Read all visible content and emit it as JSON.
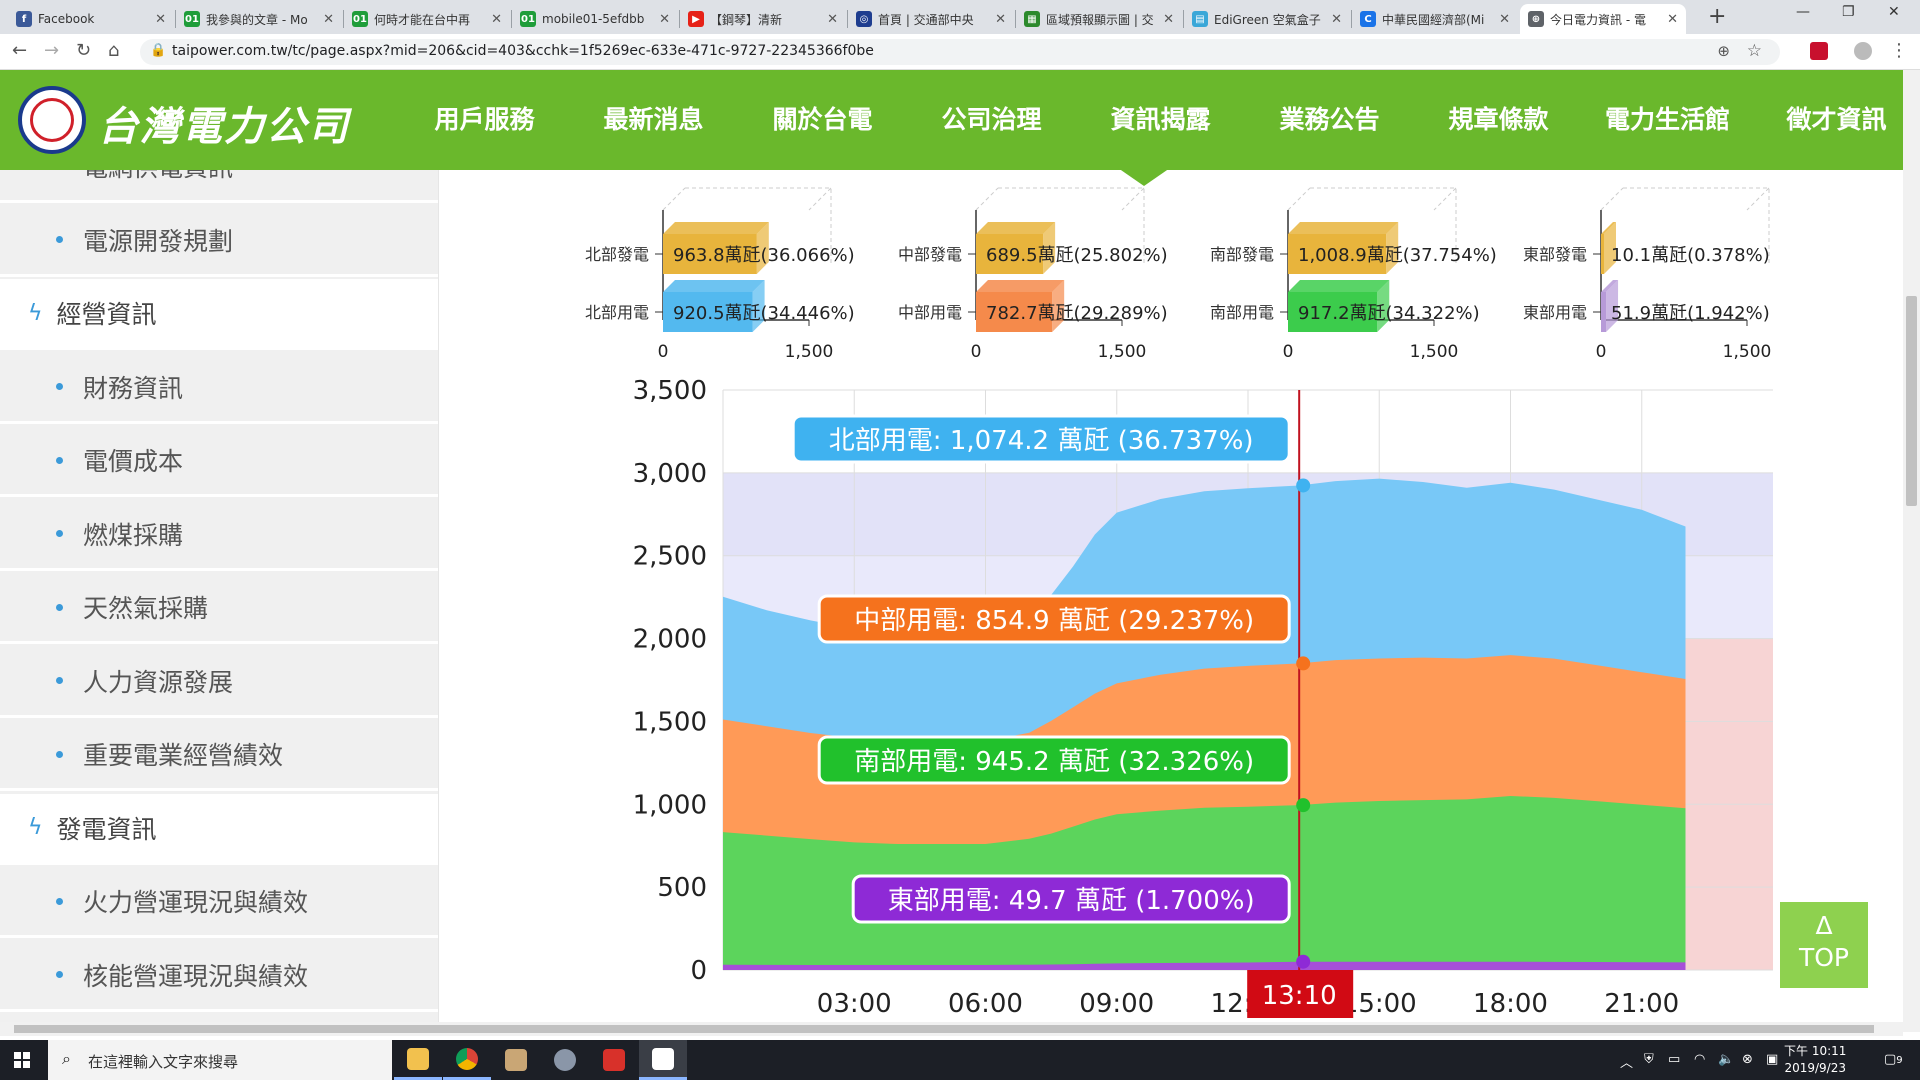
{
  "browser": {
    "tabs": [
      {
        "title": "Facebook",
        "icon": "facebook-icon",
        "color": "#3b5998",
        "glyph": "f"
      },
      {
        "title": "我參與的文章 - Mo",
        "icon": "mobile01-icon",
        "color": "#1f9d3a",
        "glyph": "01"
      },
      {
        "title": "何時才能在台中再",
        "icon": "mobile01-icon",
        "color": "#1f9d3a",
        "glyph": "01"
      },
      {
        "title": "mobile01-5efdbb",
        "icon": "mobile01-icon",
        "color": "#1f9d3a",
        "glyph": "01"
      },
      {
        "title": "【鋼琴】清新",
        "icon": "youtube-icon",
        "color": "#e62117",
        "glyph": "▶"
      },
      {
        "title": "首頁 | 交通部中央",
        "icon": "cwb-icon",
        "color": "#1e3d8f",
        "glyph": "◎"
      },
      {
        "title": "區域預報顯示圖 | 交",
        "icon": "forecast-icon",
        "color": "#2c8a2c",
        "glyph": "▦"
      },
      {
        "title": "EdiGreen 空氣盒子",
        "icon": "edigreen-icon",
        "color": "#3aa7d8",
        "glyph": "▤"
      },
      {
        "title": "中華民國經濟部(Mi",
        "icon": "loading-icon",
        "color": "#1a73e8",
        "glyph": "C"
      },
      {
        "title": "今日電力資訊 - 電",
        "icon": "taipower-icon",
        "color": "#5f6368",
        "glyph": "⊕"
      }
    ],
    "url": "taipower.com.tw/tc/page.aspx?mid=206&cid=403&cchk=1f5269ec-633e-471c-9727-22345366f0be"
  },
  "header": {
    "logo_text": "台灣電力公司",
    "nav": [
      "用戶服務",
      "最新消息",
      "關於台電",
      "公司治理",
      "資訊揭露",
      "業務公告",
      "規章條款",
      "電力生活館",
      "徵才資訊"
    ]
  },
  "sidebar": {
    "items": [
      {
        "type": "sub",
        "label": "電網供電資訊"
      },
      {
        "type": "sub",
        "label": "電源開發規劃"
      },
      {
        "type": "cat",
        "label": "經營資訊"
      },
      {
        "type": "sub",
        "label": "財務資訊"
      },
      {
        "type": "sub",
        "label": "電價成本"
      },
      {
        "type": "sub",
        "label": "燃煤採購"
      },
      {
        "type": "sub",
        "label": "天然氣採購"
      },
      {
        "type": "sub",
        "label": "人力資源發展"
      },
      {
        "type": "sub",
        "label": "重要電業經營績效"
      },
      {
        "type": "cat",
        "label": "發電資訊"
      },
      {
        "type": "sub",
        "label": "火力營運現況與績效"
      },
      {
        "type": "sub",
        "label": "核能營運現況與績效"
      }
    ]
  },
  "top_button": {
    "arrow": "Δ",
    "label": "TOP"
  },
  "taskbar": {
    "search_placeholder": "在這裡輸入文字來搜尋",
    "time": "下午 10:11",
    "date": "2019/9/23",
    "notify_count": "9"
  },
  "chart_data": [
    {
      "type": "bar",
      "groups": [
        {
          "rows": [
            {
              "name": "北部發電",
              "value": 963.8,
              "label": "963.8萬瓩(36.066%)",
              "color": "#e8b43c"
            },
            {
              "name": "北部用電",
              "value": 920.5,
              "label": "920.5萬瓩(34.446%)",
              "color": "#53b9ef"
            }
          ]
        },
        {
          "rows": [
            {
              "name": "中部發電",
              "value": 689.5,
              "label": "689.5萬瓩(25.802%)",
              "color": "#e8b43c"
            },
            {
              "name": "中部用電",
              "value": 782.7,
              "label": "782.7萬瓩(29.289%)",
              "color": "#f58a4b"
            }
          ]
        },
        {
          "rows": [
            {
              "name": "南部發電",
              "value": 1008.9,
              "label": "1,008.9萬瓩(37.754%)",
              "color": "#e8b43c"
            },
            {
              "name": "南部用電",
              "value": 917.2,
              "label": "917.2萬瓩(34.322%)",
              "color": "#3ccc4c"
            }
          ]
        },
        {
          "rows": [
            {
              "name": "東部發電",
              "value": 10.1,
              "label": "10.1萬瓩(0.378%)",
              "color": "#e8b43c"
            },
            {
              "name": "東部用電",
              "value": 51.9,
              "label": "51.9萬瓩(1.942%)",
              "color": "#b79ad8"
            }
          ]
        }
      ],
      "xlim": [
        0,
        1500
      ],
      "xticks": [
        "0",
        "1,500"
      ]
    },
    {
      "type": "area",
      "stacked": true,
      "yticks": [
        "0",
        "500",
        "1,000",
        "1,500",
        "2,000",
        "2,500",
        "3,000",
        "3,500"
      ],
      "ylim": [
        0,
        3500
      ],
      "xticks": [
        "03:00",
        "06:00",
        "09:00",
        "12:00",
        "15:00",
        "18:00",
        "21:00"
      ],
      "x_hours": [
        0,
        1,
        2,
        3,
        4,
        5,
        6,
        7,
        7.5,
        8,
        8.5,
        9,
        10,
        11,
        12,
        13.17,
        14,
        15,
        16,
        17,
        18,
        19,
        20,
        21,
        22
      ],
      "series": [
        {
          "name": "東部用電",
          "color": "#a64fd8",
          "values": [
            32,
            31,
            30,
            30,
            30,
            30,
            30,
            32,
            33,
            35,
            38,
            40,
            42,
            44,
            45,
            50,
            50,
            50,
            50,
            50,
            50,
            49,
            48,
            47,
            46
          ]
        },
        {
          "name": "南部用電",
          "color": "#5cd45c",
          "values": [
            800,
            780,
            760,
            740,
            730,
            730,
            730,
            760,
            790,
            830,
            870,
            900,
            920,
            935,
            940,
            945,
            960,
            970,
            975,
            980,
            1000,
            990,
            970,
            950,
            930
          ]
        },
        {
          "name": "中部用電",
          "color": "#ff9a57",
          "values": [
            680,
            660,
            640,
            630,
            620,
            620,
            620,
            640,
            680,
            720,
            760,
            790,
            820,
            840,
            850,
            855,
            860,
            860,
            860,
            850,
            850,
            840,
            820,
            800,
            780
          ]
        },
        {
          "name": "北部用電",
          "color": "#78c8f7",
          "values": [
            740,
            700,
            680,
            660,
            650,
            650,
            650,
            690,
            760,
            850,
            960,
            1030,
            1060,
            1070,
            1072,
            1074,
            1080,
            1085,
            1060,
            1030,
            1040,
            1020,
            1000,
            980,
            920
          ]
        }
      ],
      "bands": [
        {
          "from": 0,
          "to": 2000,
          "color": "#f7d4d4"
        },
        {
          "from": 2000,
          "to": 3000,
          "color": "#fbeaea"
        },
        {
          "from": 3000,
          "to": 3500,
          "color": "#ffffff"
        }
      ],
      "cursor": {
        "time": "13:10",
        "hour": 13.17,
        "labels": [
          {
            "text": "北部用電: 1,074.2 萬瓩 (36.737%)",
            "value": 2924,
            "color": "#3fb2f0",
            "dot": "#3fb2f0"
          },
          {
            "text": "中部用電: 854.9 萬瓩 (29.237%)",
            "value": 1850,
            "color": "#f5721d",
            "dot": "#f5721d"
          },
          {
            "text": "南部用電: 945.2 萬瓩 (32.326%)",
            "value": 995,
            "color": "#21c12c",
            "dot": "#21c12c"
          },
          {
            "text": "東部用電: 49.7 萬瓩 (1.700%)",
            "value": 50,
            "color": "#8e2ad6",
            "dot": "#8e2ad6"
          }
        ]
      }
    }
  ]
}
